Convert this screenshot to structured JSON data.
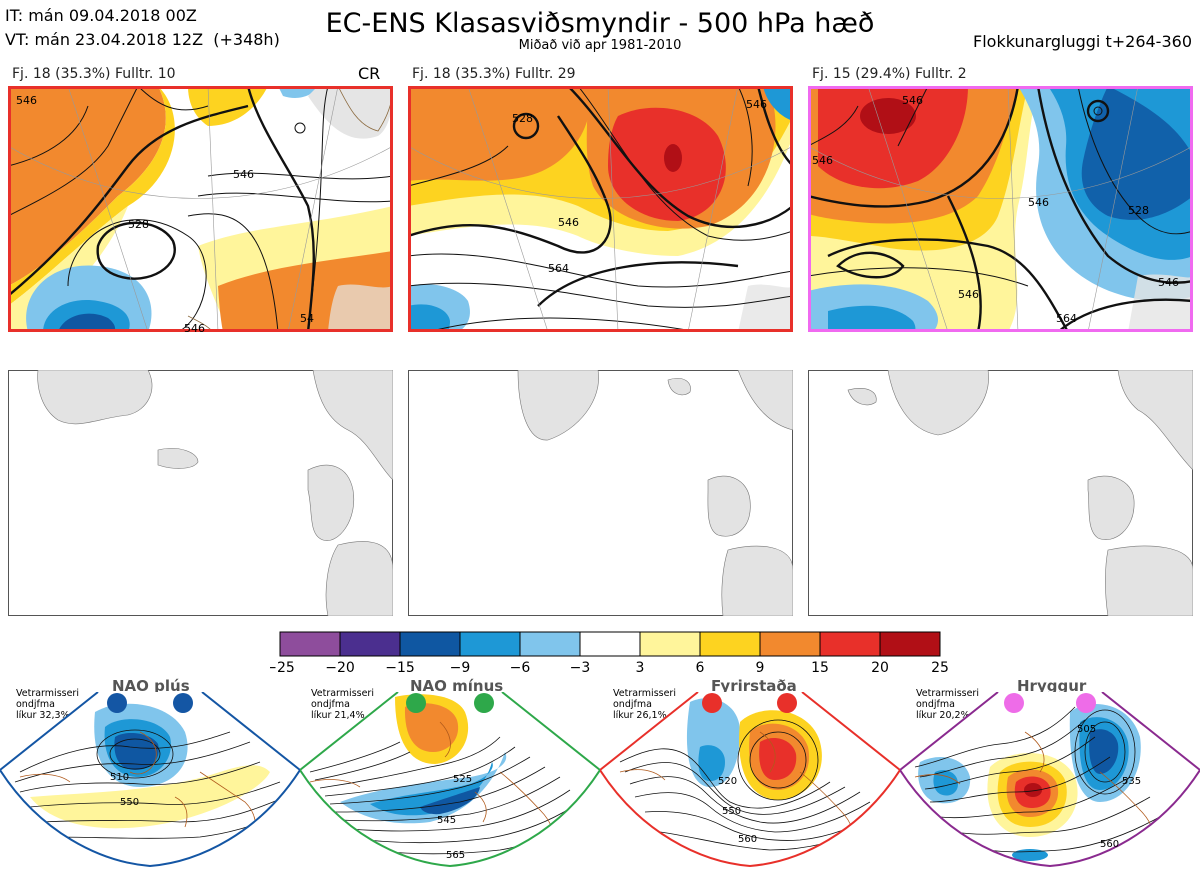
{
  "header": {
    "it_line": "IT: mán 09.04.2018 00Z",
    "vt_line": "VT: mán 23.04.2018 12Z  (+348h)",
    "title": "EC-ENS Klasasviðsmyndir - 500 hPa hæð",
    "subtitle": "Miðað við apr 1981-2010",
    "window": "Flokkunargluggi t+264-360"
  },
  "panels": [
    {
      "label": "Fj. 18 (35.3%)   Fulltr. 10",
      "tag": "CR",
      "border_color": "#e8302a",
      "contours": [
        "546",
        "528",
        "546",
        "546",
        "54"
      ]
    },
    {
      "label": "Fj. 18 (35.3%)   Fulltr. 29",
      "tag": "",
      "border_color": "#e8302a",
      "contours": [
        "528",
        "546",
        "564",
        "546"
      ]
    },
    {
      "label": "Fj. 15 (29.4%)   Fulltr. 2",
      "tag": "",
      "border_color": "#f06af0",
      "contours": [
        "546",
        "546",
        "546",
        "528",
        "546",
        "564",
        "546"
      ]
    }
  ],
  "colorbar": {
    "labels": [
      "−25",
      "−20",
      "−15",
      "−9",
      "−6",
      "−3",
      "3",
      "6",
      "9",
      "15",
      "20",
      "25"
    ],
    "colors": [
      "#8e4d9c",
      "#4b2f8f",
      "#0f57a2",
      "#1e98d6",
      "#80c5ec",
      "#ffffff",
      "#fff59b",
      "#fdd320",
      "#f2892e",
      "#e8302a",
      "#b10f16"
    ]
  },
  "regimes": [
    {
      "title": "NAO plús",
      "note": "Vetrarmisseri\nondjfma\nlíkur 32,3%",
      "color": "#1456a4",
      "contours": [
        "510",
        "550"
      ]
    },
    {
      "title": "NAO mínus",
      "note": "Vetrarmisseri\nondjfma\nlíkur 21,4%",
      "color": "#2ea84a",
      "contours": [
        "525",
        "545",
        "565"
      ]
    },
    {
      "title": "Fyrirstaða",
      "note": "Vetrarmisseri\nondjfma\nlíkur 26,1%",
      "color": "#e8302a",
      "contours": [
        "520",
        "550",
        "560"
      ]
    },
    {
      "title": "Hryggur",
      "note": "Vetrarmisseri\nondjfma\nlíkur 20,2%",
      "color": "#8a2a8f",
      "dot_color": "#ee6ce8",
      "contours": [
        "505",
        "535",
        "560"
      ]
    }
  ]
}
